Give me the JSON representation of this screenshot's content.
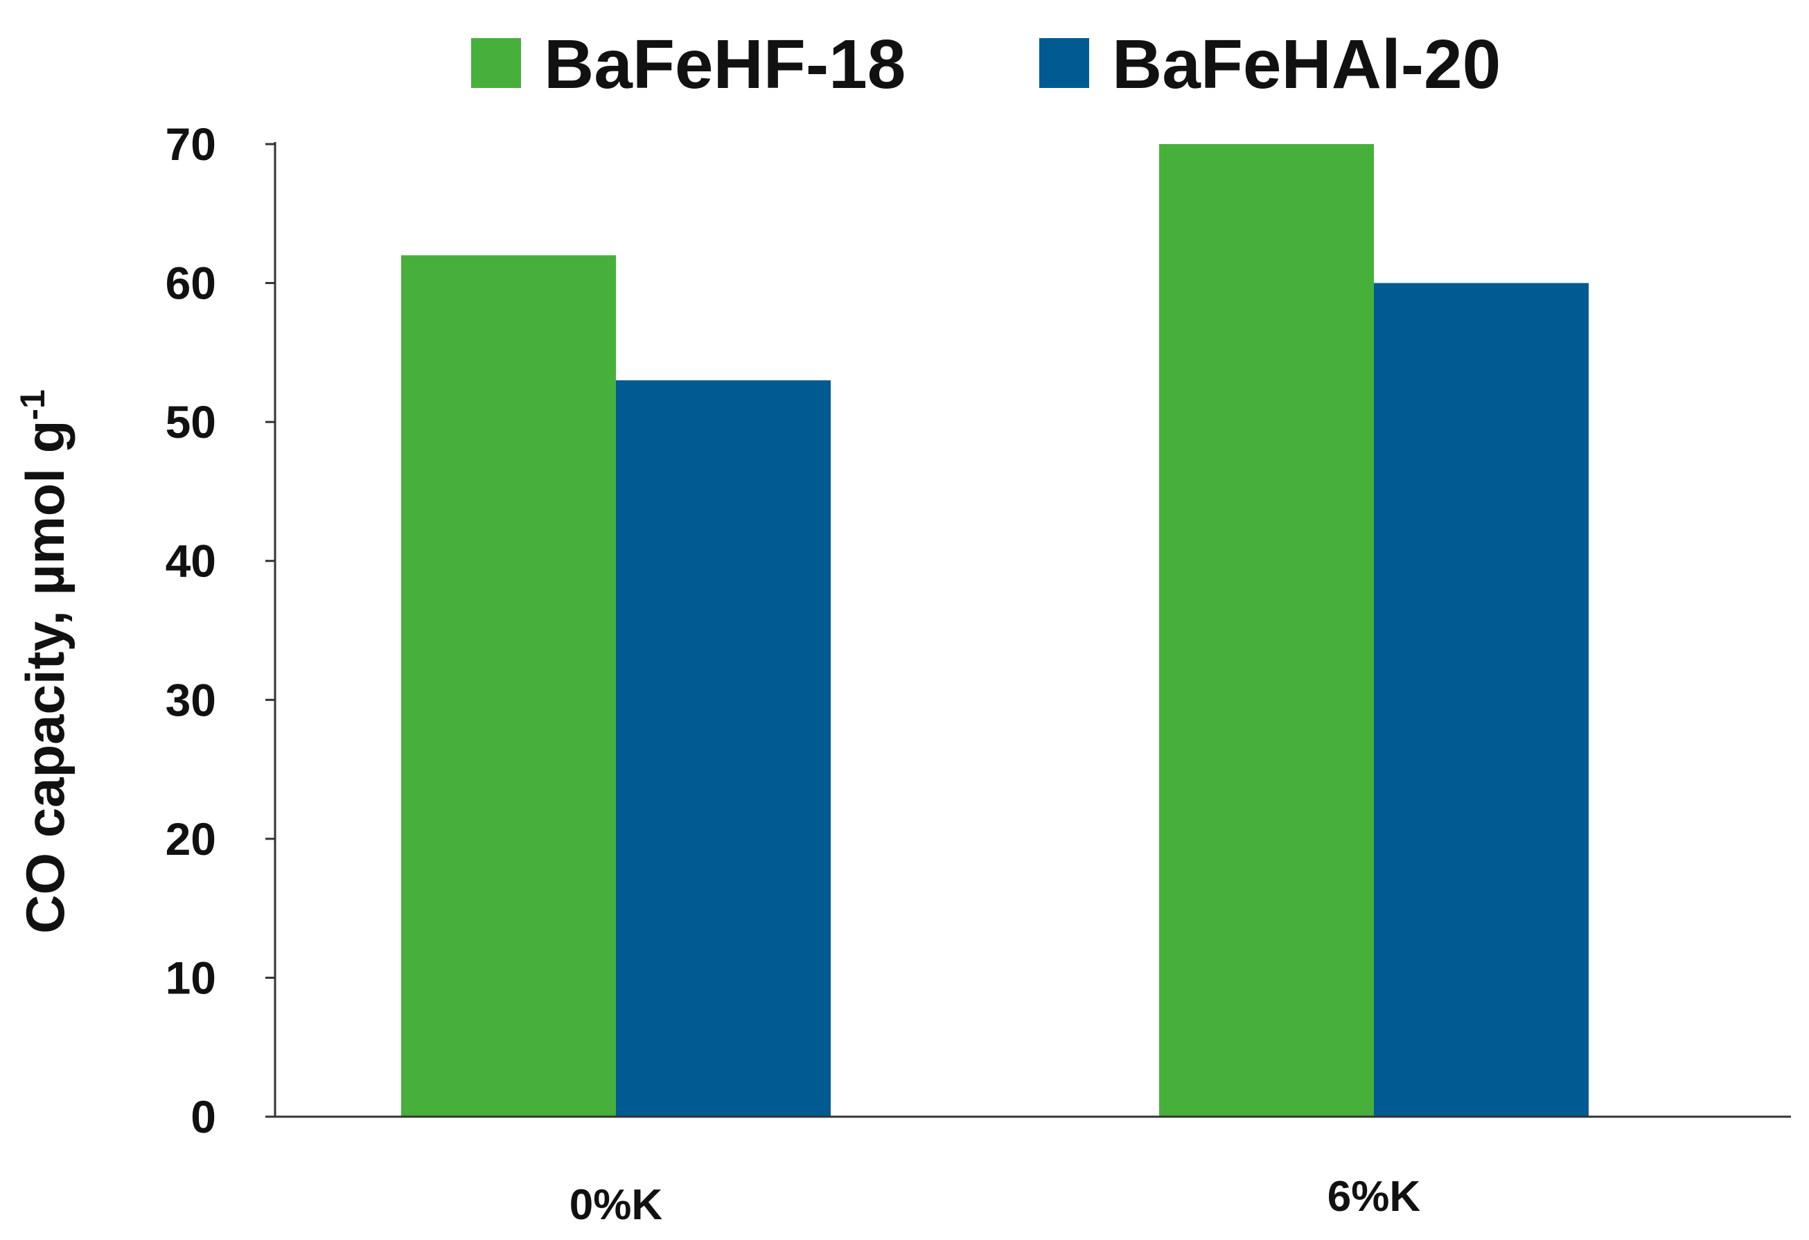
{
  "chart_data": {
    "type": "bar",
    "title": "",
    "xlabel": "",
    "ylabel": "CO capacity, µmol g",
    "ylabel_superscript": "-1",
    "categories": [
      "0%K",
      "6%K"
    ],
    "series": [
      {
        "name": "BaFeHF-18",
        "color": "#46b03b",
        "values": [
          62,
          70
        ]
      },
      {
        "name": "BaFeHAl-20",
        "color": "#005b93",
        "values": [
          53,
          60
        ]
      }
    ],
    "ylim": [
      0,
      70
    ],
    "yticks": [
      0,
      10,
      20,
      30,
      40,
      50,
      60,
      70
    ],
    "grid": false,
    "legend_position": "top"
  }
}
